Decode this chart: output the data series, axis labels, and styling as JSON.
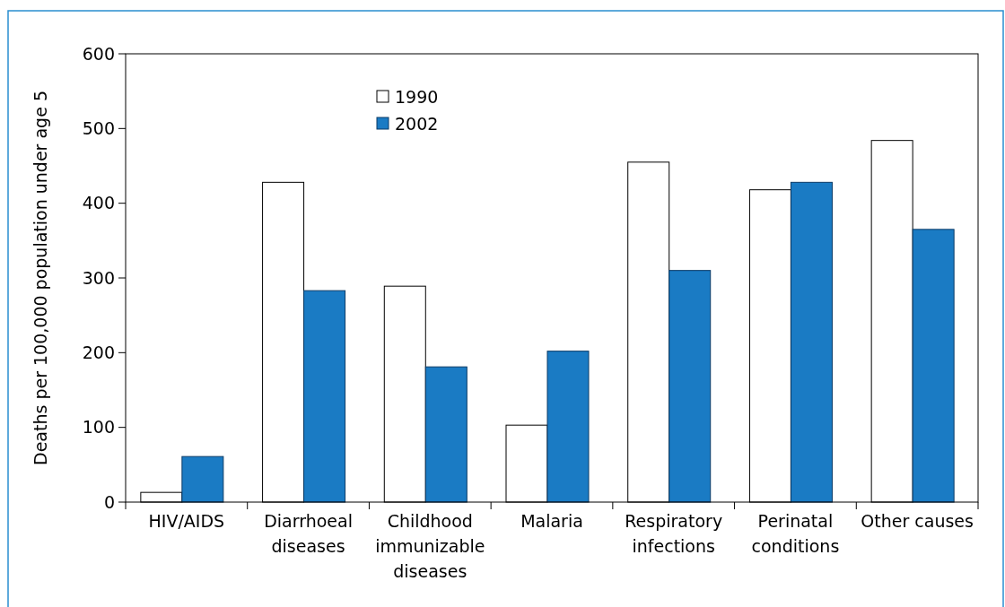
{
  "chart_data": {
    "type": "bar",
    "ylabel": "Deaths per 100,000 population under age 5",
    "categories": [
      "HIV/AIDS",
      "Diarrhoeal diseases",
      "Childhood immunizable diseases",
      "Malaria",
      "Respiratory infections",
      "Perinatal conditions",
      "Other causes"
    ],
    "series": [
      {
        "name": "1990",
        "color": "#ffffff",
        "values": [
          13,
          428,
          289,
          103,
          455,
          418,
          484
        ]
      },
      {
        "name": "2002",
        "color": "#1a7bc4",
        "values": [
          61,
          283,
          181,
          202,
          310,
          428,
          365
        ]
      }
    ],
    "ylim": [
      0,
      600
    ],
    "yticks": [
      0,
      100,
      200,
      300,
      400,
      500,
      600
    ],
    "grid": false,
    "legend": "top left"
  }
}
